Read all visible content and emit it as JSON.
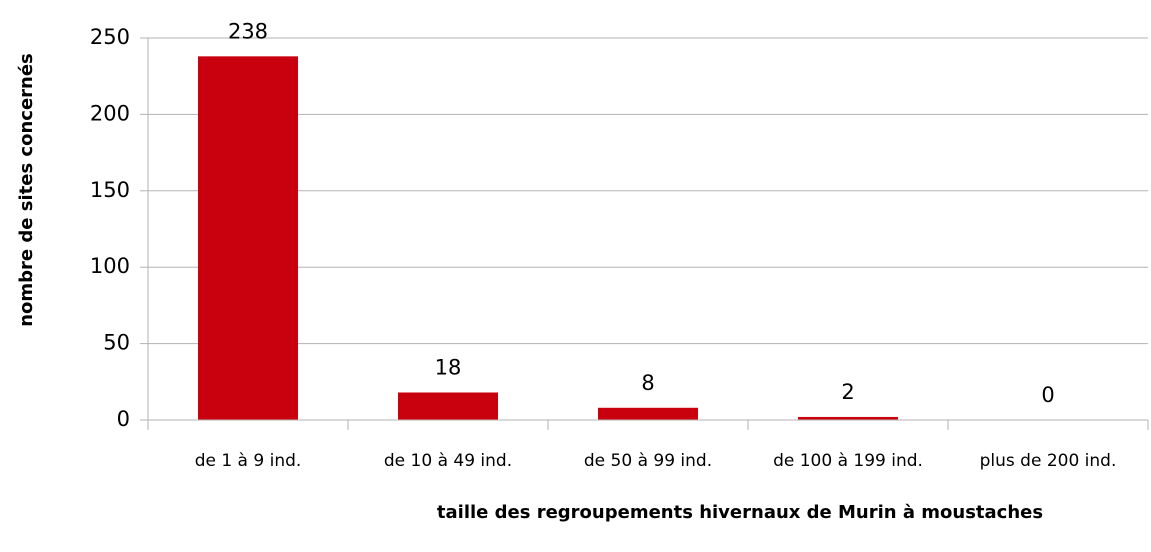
{
  "chart_data": {
    "type": "bar",
    "x_label": "taille des regroupements hivernaux de Murin à moustaches",
    "y_label": "nombre de sites concernés",
    "categories": [
      "de 1 à 9 ind.",
      "de 10 à 49 ind.",
      "de 50 à 99 ind.",
      "de 100 à 199 ind.",
      "plus de 200 ind."
    ],
    "values": [
      238,
      18,
      8,
      2,
      0
    ],
    "color": "#c9000d",
    "ylim": [
      0,
      250
    ],
    "yticks": [
      0,
      50,
      100,
      150,
      200,
      250
    ],
    "grid": true
  }
}
